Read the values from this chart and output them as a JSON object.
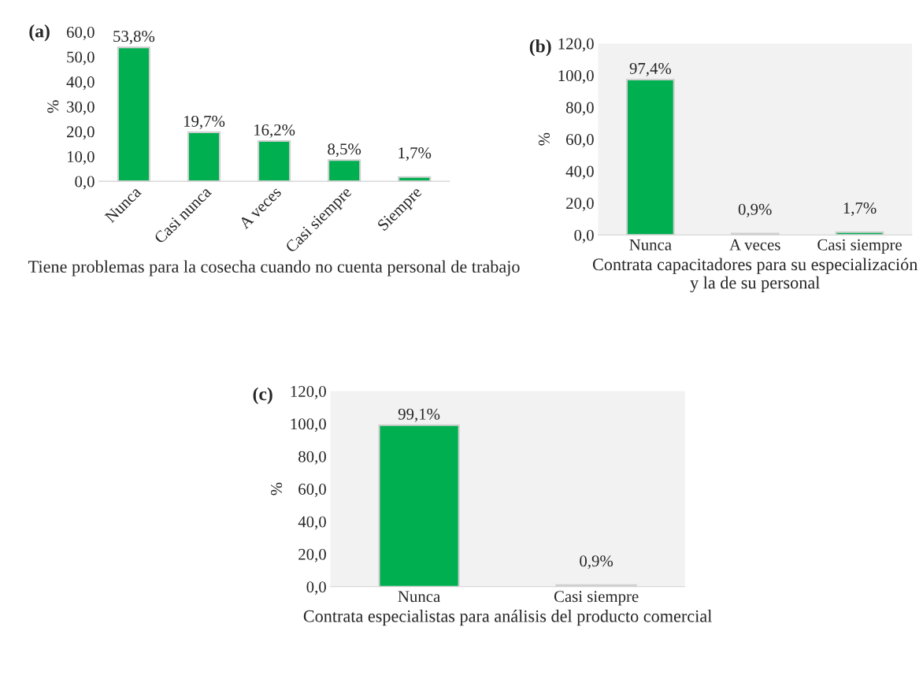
{
  "chart_data": [
    {
      "type": "bar",
      "title": "(a)",
      "xlabel": "Tiene problemas para la cosecha cuando no cuenta personal de trabajo",
      "ylabel": "%",
      "categories": [
        "Nunca",
        "Casi nunca",
        "A veces",
        "Casi siempre",
        "Siempre"
      ],
      "values": [
        53.8,
        19.7,
        16.2,
        8.5,
        1.7
      ],
      "colors": [
        "#00b050",
        "#00b050",
        "#00b050",
        "#00b050",
        "#00b050"
      ],
      "value_labels": [
        "53,8%",
        "19,7%",
        "16,2%",
        "8,5%",
        "1,7%"
      ],
      "ylim": [
        0,
        60
      ],
      "yticks": [
        {
          "value": 0,
          "label": "0,0"
        },
        {
          "value": 10,
          "label": "10,0"
        },
        {
          "value": 20,
          "label": "20,0"
        },
        {
          "value": 30,
          "label": "30,0"
        },
        {
          "value": 40,
          "label": "40,0"
        },
        {
          "value": 50,
          "label": "50,0"
        },
        {
          "value": 60,
          "label": "60,0"
        }
      ],
      "grid": false,
      "legend": false
    },
    {
      "type": "bar",
      "title": "(b)",
      "xlabel": "Contrata capacitadores para su especialización y la de su personal",
      "ylabel": "%",
      "categories": [
        "Nunca",
        "A veces",
        "Casi siempre"
      ],
      "values": [
        97.4,
        0.9,
        1.7
      ],
      "colors": [
        "#00b050",
        "#d9d9d9",
        "#00b050"
      ],
      "value_labels": [
        "97,4%",
        "0,9%",
        "1,7%"
      ],
      "ylim": [
        0,
        120
      ],
      "yticks": [
        {
          "value": 0,
          "label": "0,0"
        },
        {
          "value": 20,
          "label": "20,0"
        },
        {
          "value": 40,
          "label": "40,0"
        },
        {
          "value": 60,
          "label": "60,0"
        },
        {
          "value": 80,
          "label": "80,0"
        },
        {
          "value": 100,
          "label": "100,0"
        },
        {
          "value": 120,
          "label": "120,0"
        }
      ],
      "grid": false,
      "legend": false
    },
    {
      "type": "bar",
      "title": "(c)",
      "xlabel": "Contrata especialistas para análisis del producto comercial",
      "ylabel": "%",
      "categories": [
        "Nunca",
        "Casi siempre"
      ],
      "values": [
        99.1,
        0.9
      ],
      "colors": [
        "#00b050",
        "#d9d9d9"
      ],
      "value_labels": [
        "99,1%",
        "0,9%"
      ],
      "ylim": [
        0,
        120
      ],
      "yticks": [
        {
          "value": 0,
          "label": "0,0"
        },
        {
          "value": 20,
          "label": "20,0"
        },
        {
          "value": 40,
          "label": "40,0"
        },
        {
          "value": 60,
          "label": "60,0"
        },
        {
          "value": 80,
          "label": "80,0"
        },
        {
          "value": 100,
          "label": "100,0"
        },
        {
          "value": 120,
          "label": "120,0"
        }
      ],
      "grid": false,
      "legend": false
    }
  ]
}
